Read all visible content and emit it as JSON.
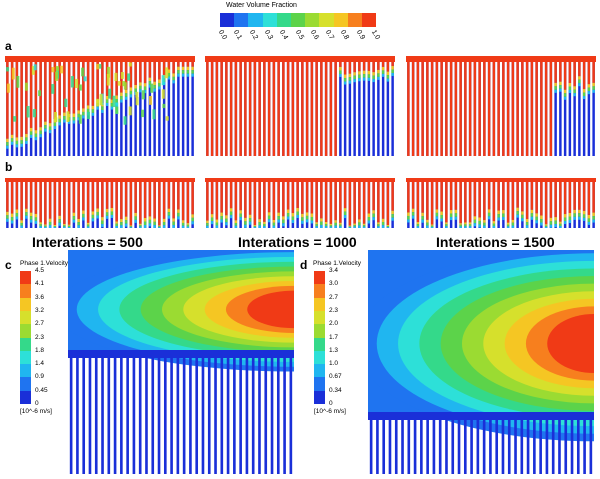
{
  "legend_top": {
    "title": "Water Volume Fraction",
    "ticks": [
      "0.0",
      "0.1",
      "0.2",
      "0.3",
      "0.4",
      "0.5",
      "0.6",
      "0.7",
      "0.8",
      "0.9",
      "1.0"
    ],
    "colors": [
      "#1a2fd8",
      "#1f74f0",
      "#20b6f0",
      "#2de0d8",
      "#34d98a",
      "#5cd34a",
      "#9bdb32",
      "#d6e02c",
      "#f5c623",
      "#f77f1e",
      "#f03a16"
    ]
  },
  "panel_labels": {
    "a": "a",
    "b": "b",
    "c": "c",
    "d": "d"
  },
  "iterations": {
    "i500": "Interations = 500",
    "i1000": "Interations = 1000",
    "i1500": "Interations = 1500"
  },
  "panel_c": {
    "title": "Phase 1.Velocity",
    "ticks": [
      "4.5",
      "4.1",
      "3.6",
      "3.2",
      "2.7",
      "2.3",
      "1.8",
      "1.4",
      "0.9",
      "0.45",
      "0"
    ],
    "unit": "[10^-6 m/s]"
  },
  "panel_d": {
    "title": "Phase 1.Velocity",
    "ticks": [
      "3.4",
      "3.0",
      "2.7",
      "2.3",
      "2.0",
      "1.7",
      "1.3",
      "1.0",
      "0.67",
      "0.34",
      "0"
    ],
    "unit": "[10^-6 m/s]"
  },
  "contour_colors": [
    "#1a2fd8",
    "#1f74f0",
    "#20b6f0",
    "#2de0d8",
    "#34d98a",
    "#5cd34a",
    "#9bdb32",
    "#d6e02c",
    "#f5c623",
    "#f77f1e",
    "#f03a16"
  ]
}
